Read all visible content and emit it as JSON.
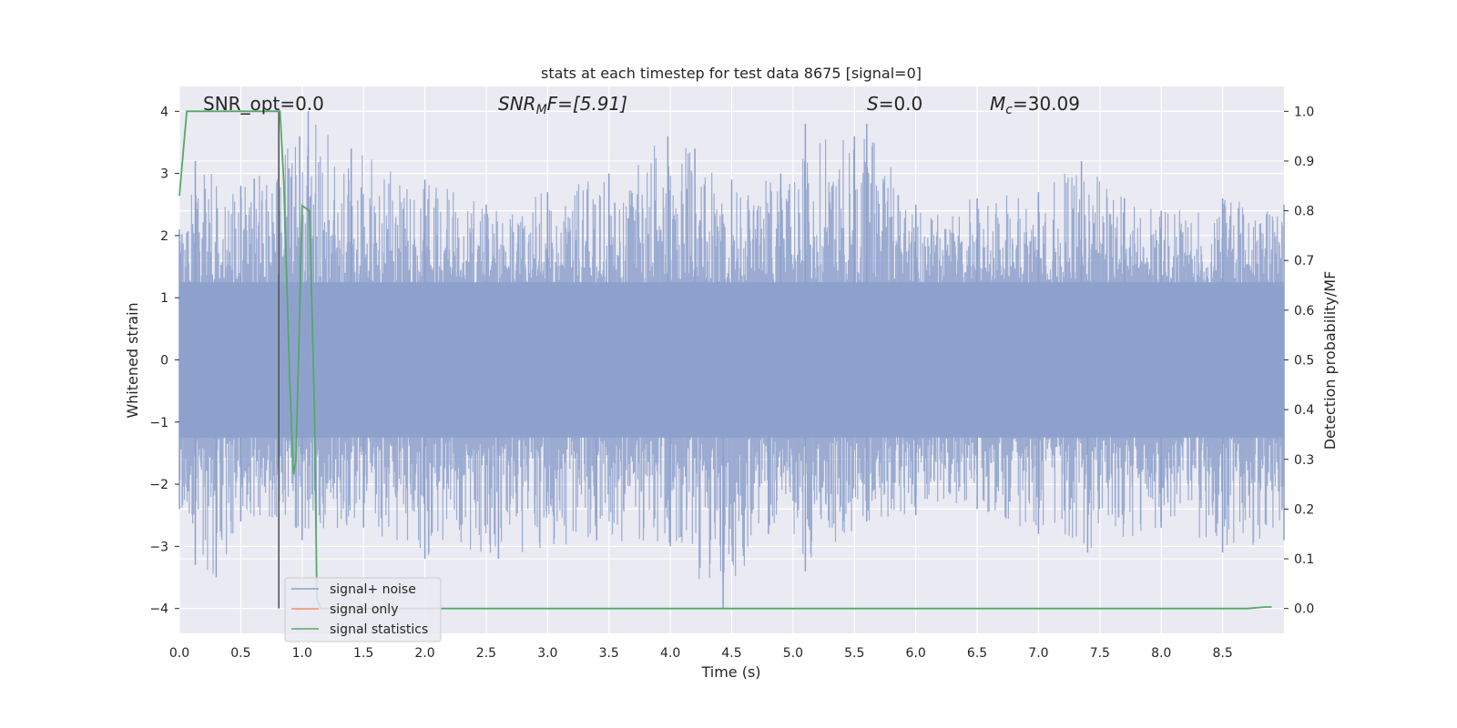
{
  "chart_data": {
    "type": "line",
    "title": "stats at each timestep for test data 8675 [signal=0]",
    "xlabel": "Time (s)",
    "ylabel": "Whitened strain",
    "ylabel_right": "Detection probability/MF",
    "xlim": [
      0.0,
      9.0
    ],
    "ylim": [
      -4.4,
      4.4
    ],
    "ylim_right": [
      -0.05,
      1.05
    ],
    "x_ticks": [
      "0.0",
      "0.5",
      "1.0",
      "1.5",
      "2.0",
      "2.5",
      "3.0",
      "3.5",
      "4.0",
      "4.5",
      "5.0",
      "5.5",
      "6.0",
      "6.5",
      "7.0",
      "7.5",
      "8.0",
      "8.5"
    ],
    "y_ticks": [
      "−4",
      "−3",
      "−2",
      "−1",
      "0",
      "1",
      "2",
      "3",
      "4"
    ],
    "y_ticks_right": [
      "0.0",
      "0.1",
      "0.2",
      "0.3",
      "0.4",
      "0.5",
      "0.6",
      "0.7",
      "0.8",
      "0.9",
      "1.0"
    ],
    "grid": true,
    "legend_position": "lower-left",
    "annotations": {
      "snr_opt": "SNR_opt=0.0",
      "snr_mf_base": "SNR",
      "snr_mf_sub": "M",
      "snr_mf_rest": "F=[5.91]",
      "s_label": "S",
      "s_rest": "=0.0",
      "mc_base": "M",
      "mc_sub": "c",
      "mc_rest": "=30.09"
    },
    "vertical_marker_x": 0.81,
    "series": [
      {
        "name": "signal+ noise",
        "color": "#8da0cb",
        "axis": "left",
        "envelope_upper": [
          [
            0.0,
            2.1
          ],
          [
            0.13,
            3.2
          ],
          [
            0.5,
            2.8
          ],
          [
            0.98,
            3.6
          ],
          [
            1.05,
            4.0
          ],
          [
            1.4,
            3.4
          ],
          [
            2.0,
            2.9
          ],
          [
            2.5,
            2.5
          ],
          [
            3.0,
            2.7
          ],
          [
            3.5,
            3.0
          ],
          [
            3.98,
            3.6
          ],
          [
            4.2,
            3.4
          ],
          [
            4.5,
            2.9
          ],
          [
            4.9,
            3.0
          ],
          [
            5.1,
            3.8
          ],
          [
            5.5,
            3.6
          ],
          [
            5.6,
            3.8
          ],
          [
            6.0,
            2.5
          ],
          [
            6.5,
            2.6
          ],
          [
            7.0,
            2.7
          ],
          [
            7.35,
            3.2
          ],
          [
            7.7,
            2.6
          ],
          [
            8.0,
            2.4
          ],
          [
            8.5,
            2.6
          ],
          [
            9.0,
            2.5
          ]
        ],
        "envelope_lower": [
          [
            0.0,
            -2.4
          ],
          [
            0.13,
            -3.3
          ],
          [
            0.3,
            -3.5
          ],
          [
            0.5,
            -2.6
          ],
          [
            1.0,
            -2.9
          ],
          [
            1.5,
            -2.7
          ],
          [
            2.0,
            -3.2
          ],
          [
            2.6,
            -3.2
          ],
          [
            3.4,
            -2.9
          ],
          [
            4.0,
            -3.0
          ],
          [
            4.43,
            -4.0
          ],
          [
            4.8,
            -2.8
          ],
          [
            5.1,
            -3.4
          ],
          [
            5.6,
            -2.6
          ],
          [
            6.0,
            -2.5
          ],
          [
            6.5,
            -2.4
          ],
          [
            7.0,
            -2.8
          ],
          [
            7.4,
            -3.1
          ],
          [
            8.0,
            -2.7
          ],
          [
            8.5,
            -3.1
          ],
          [
            9.0,
            -2.9
          ]
        ]
      },
      {
        "name": "signal only",
        "color": "#fc8d62",
        "axis": "left",
        "values": []
      },
      {
        "name": "signal statistics",
        "color": "#55a868",
        "axis": "right",
        "x": [
          0.0,
          0.06,
          0.12,
          0.8,
          0.82,
          0.85,
          0.9,
          0.93,
          0.95,
          0.98,
          1.0,
          1.06,
          1.1,
          1.12,
          1.15,
          2.0,
          3.0,
          4.0,
          5.0,
          6.0,
          7.0,
          8.0,
          8.7,
          8.8,
          8.85,
          8.9
        ],
        "values": [
          0.83,
          1.0,
          1.0,
          1.0,
          1.0,
          0.86,
          0.45,
          0.27,
          0.3,
          0.6,
          0.81,
          0.8,
          0.4,
          0.02,
          0.0,
          0.0,
          0.0,
          0.0,
          0.0,
          0.0,
          0.0,
          0.0,
          0.0,
          0.002,
          0.003,
          0.003
        ]
      }
    ]
  },
  "colors": {
    "plot_background": "#eaeaf2",
    "grid": "#ffffff",
    "marker_line": "#555555"
  }
}
